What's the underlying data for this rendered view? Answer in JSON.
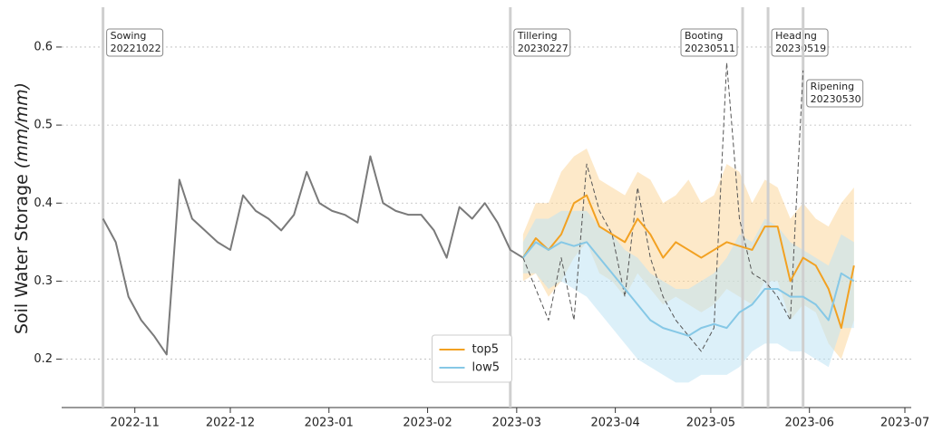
{
  "chart_data": {
    "type": "line",
    "ylabel": "Soil Water Storage",
    "ylabel_unit": "(mm/mm)",
    "xlim": [
      "2022-10-09",
      "2023-07-03"
    ],
    "xticks": [
      "2022-11",
      "2022-12",
      "2023-01",
      "2023-02",
      "2023-03",
      "2023-04",
      "2023-05",
      "2023-06",
      "2023-07"
    ],
    "ylim": [
      0.138,
      0.651
    ],
    "yticks": [
      0.2,
      0.3,
      0.4,
      0.5,
      0.6
    ],
    "grid": true,
    "legend": "lower center",
    "events": [
      {
        "label": "Sowing",
        "date": "20221022"
      },
      {
        "label": "Tillering",
        "date": "20230227"
      },
      {
        "label": "Booting",
        "date": "20230511"
      },
      {
        "label": "Heading",
        "date": "20230519"
      },
      {
        "label": "Ripening",
        "date": "20230530"
      }
    ],
    "series": [
      {
        "color": "#7a7a7a",
        "style": "solid",
        "x": [
          "2022-10-22",
          "2022-10-26",
          "2022-10-30",
          "2022-11-03",
          "2022-11-07",
          "2022-11-11",
          "2022-11-15",
          "2022-11-19",
          "2022-11-23",
          "2022-11-27",
          "2022-12-01",
          "2022-12-05",
          "2022-12-09",
          "2022-12-13",
          "2022-12-17",
          "2022-12-21",
          "2022-12-25",
          "2022-12-29",
          "2023-01-02",
          "2023-01-06",
          "2023-01-10",
          "2023-01-14",
          "2023-01-18",
          "2023-01-22",
          "2023-01-26",
          "2023-01-30",
          "2023-02-03",
          "2023-02-07",
          "2023-02-11",
          "2023-02-15",
          "2023-02-19",
          "2023-02-23",
          "2023-02-27",
          "2023-03-03"
        ],
        "values": [
          0.38,
          0.35,
          0.28,
          0.25,
          0.23,
          0.206,
          0.43,
          0.38,
          0.365,
          0.35,
          0.34,
          0.41,
          0.39,
          0.38,
          0.365,
          0.385,
          0.44,
          0.4,
          0.39,
          0.385,
          0.375,
          0.46,
          0.4,
          0.39,
          0.385,
          0.385,
          0.365,
          0.33,
          0.395,
          0.38,
          0.4,
          0.375,
          0.34,
          0.33
        ]
      },
      {
        "color": "#555555",
        "style": "dashed",
        "x": [
          "2023-03-03",
          "2023-03-07",
          "2023-03-11",
          "2023-03-15",
          "2023-03-19",
          "2023-03-23",
          "2023-03-27",
          "2023-03-31",
          "2023-04-04",
          "2023-04-08",
          "2023-04-12",
          "2023-04-16",
          "2023-04-20",
          "2023-04-24",
          "2023-04-28",
          "2023-05-02",
          "2023-05-06",
          "2023-05-10",
          "2023-05-14",
          "2023-05-18",
          "2023-05-22",
          "2023-05-26",
          "2023-05-30"
        ],
        "values": [
          0.33,
          0.29,
          0.25,
          0.33,
          0.25,
          0.45,
          0.39,
          0.36,
          0.28,
          0.42,
          0.33,
          0.28,
          0.25,
          0.23,
          0.21,
          0.24,
          0.58,
          0.38,
          0.31,
          0.3,
          0.28,
          0.25,
          0.57
        ]
      },
      {
        "name": "top5",
        "color": "#f2a122",
        "band_color": "#fbd79c",
        "x": [
          "2023-03-03",
          "2023-03-07",
          "2023-03-11",
          "2023-03-15",
          "2023-03-19",
          "2023-03-23",
          "2023-03-27",
          "2023-03-31",
          "2023-04-04",
          "2023-04-08",
          "2023-04-12",
          "2023-04-16",
          "2023-04-20",
          "2023-04-24",
          "2023-04-28",
          "2023-05-02",
          "2023-05-06",
          "2023-05-10",
          "2023-05-14",
          "2023-05-18",
          "2023-05-22",
          "2023-05-26",
          "2023-05-30",
          "2023-06-03",
          "2023-06-07",
          "2023-06-11",
          "2023-06-15"
        ],
        "values": [
          0.33,
          0.355,
          0.34,
          0.36,
          0.4,
          0.41,
          0.37,
          0.36,
          0.35,
          0.38,
          0.36,
          0.33,
          0.35,
          0.34,
          0.33,
          0.34,
          0.35,
          0.345,
          0.34,
          0.37,
          0.37,
          0.3,
          0.33,
          0.32,
          0.29,
          0.24,
          0.32
        ],
        "upper": [
          0.36,
          0.4,
          0.4,
          0.44,
          0.46,
          0.47,
          0.43,
          0.42,
          0.41,
          0.44,
          0.43,
          0.4,
          0.41,
          0.43,
          0.4,
          0.41,
          0.45,
          0.44,
          0.4,
          0.43,
          0.42,
          0.38,
          0.4,
          0.38,
          0.37,
          0.4,
          0.42
        ],
        "lower": [
          0.3,
          0.31,
          0.28,
          0.3,
          0.33,
          0.35,
          0.31,
          0.3,
          0.28,
          0.31,
          0.29,
          0.27,
          0.28,
          0.27,
          0.26,
          0.27,
          0.29,
          0.28,
          0.27,
          0.3,
          0.3,
          0.25,
          0.27,
          0.26,
          0.22,
          0.2,
          0.25
        ]
      },
      {
        "name": "low5",
        "color": "#86c8e6",
        "band_color": "#bfe3f4",
        "x": [
          "2023-03-03",
          "2023-03-07",
          "2023-03-11",
          "2023-03-15",
          "2023-03-19",
          "2023-03-23",
          "2023-03-27",
          "2023-03-31",
          "2023-04-04",
          "2023-04-08",
          "2023-04-12",
          "2023-04-16",
          "2023-04-20",
          "2023-04-24",
          "2023-04-28",
          "2023-05-02",
          "2023-05-06",
          "2023-05-10",
          "2023-05-14",
          "2023-05-18",
          "2023-05-22",
          "2023-05-26",
          "2023-05-30",
          "2023-06-03",
          "2023-06-07",
          "2023-06-11",
          "2023-06-15"
        ],
        "values": [
          0.33,
          0.35,
          0.34,
          0.35,
          0.345,
          0.35,
          0.33,
          0.31,
          0.29,
          0.27,
          0.25,
          0.24,
          0.235,
          0.23,
          0.24,
          0.245,
          0.24,
          0.26,
          0.27,
          0.29,
          0.29,
          0.28,
          0.28,
          0.27,
          0.25,
          0.31,
          0.3
        ],
        "upper": [
          0.35,
          0.38,
          0.38,
          0.39,
          0.39,
          0.39,
          0.37,
          0.36,
          0.34,
          0.33,
          0.31,
          0.3,
          0.29,
          0.29,
          0.3,
          0.31,
          0.33,
          0.36,
          0.35,
          0.38,
          0.37,
          0.35,
          0.34,
          0.33,
          0.32,
          0.36,
          0.35
        ],
        "lower": [
          0.31,
          0.31,
          0.29,
          0.3,
          0.29,
          0.28,
          0.26,
          0.24,
          0.22,
          0.2,
          0.19,
          0.18,
          0.17,
          0.17,
          0.18,
          0.18,
          0.18,
          0.19,
          0.21,
          0.22,
          0.22,
          0.21,
          0.21,
          0.2,
          0.19,
          0.24,
          0.24
        ]
      }
    ]
  }
}
